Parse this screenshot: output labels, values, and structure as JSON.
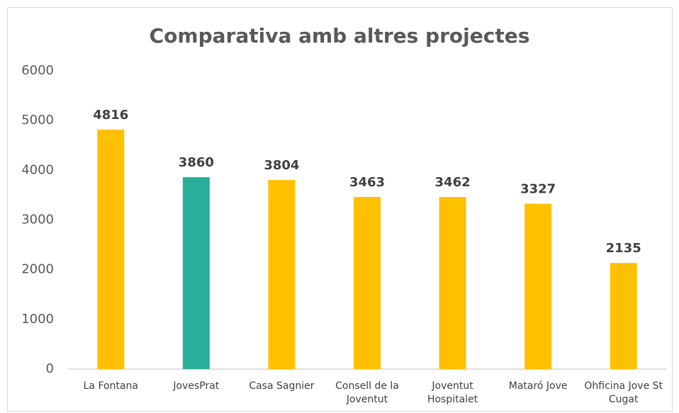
{
  "chart_data": {
    "type": "bar",
    "title": "Comparativa amb altres projectes",
    "categories": [
      "La Fontana",
      "JovesPrat",
      "Casa Sagnier",
      "Consell de la Joventut",
      "Joventut Hospitalet",
      "Mataró Jove",
      "Ohficina Jove St Cugat"
    ],
    "values": [
      4816,
      3860,
      3804,
      3463,
      3462,
      3327,
      2135
    ],
    "colors": [
      "#ffc000",
      "#2ab09a",
      "#ffc000",
      "#ffc000",
      "#ffc000",
      "#ffc000",
      "#ffc000"
    ],
    "ylim": [
      0,
      6000
    ],
    "yticks": [
      0,
      1000,
      2000,
      3000,
      4000,
      5000,
      6000
    ],
    "grid": false
  }
}
